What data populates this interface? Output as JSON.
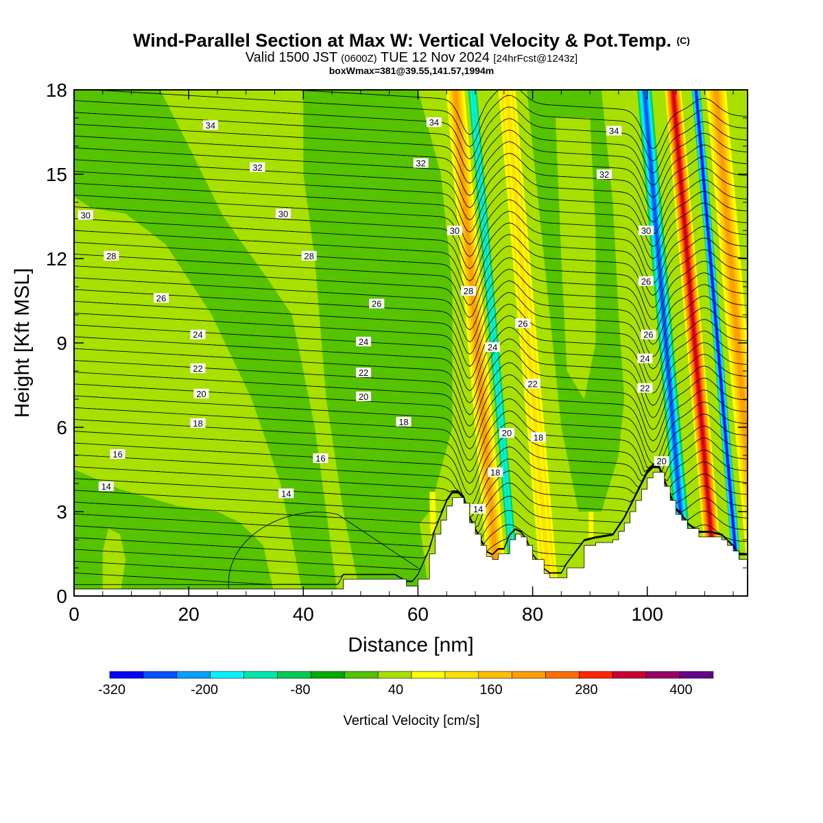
{
  "header": {
    "title": "Wind-Parallel Section at Max W: Vertical Velocity & Pot.Temp.",
    "copyright": "(C)",
    "valid_a": "Valid 1500 JST",
    "valid_zulu": "(0600Z)",
    "valid_b": "TUE 12 Nov 2024",
    "fcst": "[24hrFcst@1243z]",
    "boxinfo": "boxWmax=381@39.55,141.57,1994m"
  },
  "chart_data": {
    "type": "heatmap",
    "title": "Wind-Parallel Section at Max W: Vertical Velocity & Pot.Temp.",
    "xlabel": "Distance [nm]",
    "ylabel": "Height [Kft MSL]",
    "xlim": [
      0,
      117.5
    ],
    "ylim": [
      0,
      18
    ],
    "x_ticks": [
      "0",
      "20",
      "40",
      "60",
      "80",
      "100"
    ],
    "y_ticks": [
      "0",
      "3",
      "6",
      "9",
      "12",
      "15",
      "18"
    ],
    "colorbar": {
      "label": "Vertical Velocity [cm/s]",
      "tick_labels": [
        "-320",
        "-200",
        "-80",
        "40",
        "160",
        "280",
        "400"
      ],
      "colors": [
        "#0000ff",
        "#0050ff",
        "#00a0ff",
        "#00f5ff",
        "#00e8b0",
        "#00cc55",
        "#00aa00",
        "#55c300",
        "#a8e000",
        "#ffff00",
        "#ffdf00",
        "#ffbf00",
        "#ff9f00",
        "#ff6f00",
        "#ff2500",
        "#cc0033",
        "#990066",
        "#660088"
      ]
    },
    "background_colors": {
      "light": "#a8e000",
      "medium": "#55c300",
      "dark": "#00aa00",
      "terrain": "#ffffff"
    },
    "updraft_bands": [
      {
        "x": 66.5,
        "width": 3.2,
        "level": "warm"
      },
      {
        "x": 75.5,
        "width": 3.0,
        "level": "yellow"
      },
      {
        "x": 104.5,
        "width": 2.8,
        "level": "hot"
      },
      {
        "x": 112,
        "width": 3.5,
        "level": "warm"
      }
    ],
    "downdraft_bands": [
      {
        "x": 69.5,
        "width": 1.5,
        "level": "cyan"
      },
      {
        "x": 99.5,
        "width": 2.5,
        "level": "blue"
      },
      {
        "x": 108.5,
        "width": 1.5,
        "level": "deep-blue"
      }
    ],
    "terrain_profile": {
      "x": [
        0,
        46,
        47,
        56,
        58,
        59,
        60,
        62,
        63,
        64,
        65,
        66,
        67,
        68,
        69,
        70,
        71,
        72,
        73,
        74,
        75,
        76,
        77,
        78,
        79,
        80,
        82,
        83,
        84,
        85,
        86,
        89,
        91,
        94,
        95,
        96,
        97,
        98,
        99,
        100,
        101,
        102,
        103,
        104,
        105,
        106,
        107,
        109,
        111,
        113,
        114,
        115,
        116,
        117.5
      ],
      "kft": [
        0.25,
        0.25,
        0.6,
        0.6,
        0.35,
        0.35,
        0.6,
        1.5,
        2.2,
        2.7,
        3.2,
        3.5,
        3.5,
        3.3,
        2.6,
        2.2,
        1.8,
        1.4,
        1.3,
        1.5,
        1.5,
        2.0,
        2.2,
        2.1,
        1.8,
        1.3,
        0.8,
        0.65,
        0.65,
        0.65,
        1.0,
        1.8,
        1.9,
        2.0,
        2.3,
        2.6,
        3.0,
        3.4,
        3.8,
        4.2,
        4.4,
        4.4,
        3.9,
        3.4,
        2.9,
        2.7,
        2.4,
        2.1,
        2.1,
        2.0,
        1.8,
        1.6,
        1.3,
        1.3
      ]
    },
    "theta_labels": [
      {
        "text": "34",
        "x": 23.8,
        "y": 16.75
      },
      {
        "text": "34",
        "x": 62.8,
        "y": 16.85
      },
      {
        "text": "34",
        "x": 94.2,
        "y": 16.55
      },
      {
        "text": "32",
        "x": 32.0,
        "y": 15.25
      },
      {
        "text": "32",
        "x": 60.5,
        "y": 15.4
      },
      {
        "text": "32",
        "x": 92.5,
        "y": 15.0
      },
      {
        "text": "30",
        "x": 2.0,
        "y": 13.55
      },
      {
        "text": "30",
        "x": 36.5,
        "y": 13.6
      },
      {
        "text": "30",
        "x": 66.4,
        "y": 13.0
      },
      {
        "text": "30",
        "x": 99.8,
        "y": 13.0
      },
      {
        "text": "28",
        "x": 6.5,
        "y": 12.1
      },
      {
        "text": "28",
        "x": 41.0,
        "y": 12.1
      },
      {
        "text": "28",
        "x": 68.8,
        "y": 10.85
      },
      {
        "text": "26",
        "x": 15.2,
        "y": 10.6
      },
      {
        "text": "26",
        "x": 52.8,
        "y": 10.4
      },
      {
        "text": "26",
        "x": 78.3,
        "y": 9.7
      },
      {
        "text": "26",
        "x": 99.8,
        "y": 11.2
      },
      {
        "text": "26",
        "x": 100.2,
        "y": 9.3
      },
      {
        "text": "24",
        "x": 21.6,
        "y": 9.3
      },
      {
        "text": "24",
        "x": 50.5,
        "y": 9.05
      },
      {
        "text": "24",
        "x": 73.0,
        "y": 8.85
      },
      {
        "text": "24",
        "x": 99.6,
        "y": 8.45
      },
      {
        "text": "22",
        "x": 21.6,
        "y": 8.1
      },
      {
        "text": "22",
        "x": 50.5,
        "y": 7.95
      },
      {
        "text": "22",
        "x": 80.0,
        "y": 7.55
      },
      {
        "text": "22",
        "x": 99.6,
        "y": 7.4
      },
      {
        "text": "20",
        "x": 22.2,
        "y": 7.2
      },
      {
        "text": "20",
        "x": 50.5,
        "y": 7.1
      },
      {
        "text": "20",
        "x": 75.5,
        "y": 5.8
      },
      {
        "text": "20",
        "x": 102.5,
        "y": 4.8
      },
      {
        "text": "18",
        "x": 21.6,
        "y": 6.15
      },
      {
        "text": "18",
        "x": 57.5,
        "y": 6.2
      },
      {
        "text": "18",
        "x": 81.0,
        "y": 5.65
      },
      {
        "text": "18",
        "x": 73.5,
        "y": 4.4
      },
      {
        "text": "16",
        "x": 7.6,
        "y": 5.05
      },
      {
        "text": "16",
        "x": 43.0,
        "y": 4.9
      },
      {
        "text": "14",
        "x": 5.6,
        "y": 3.9
      },
      {
        "text": "14",
        "x": 37.0,
        "y": 3.65
      },
      {
        "text": "14",
        "x": 70.5,
        "y": 3.1
      }
    ],
    "grid": false,
    "legend": "bottom"
  }
}
